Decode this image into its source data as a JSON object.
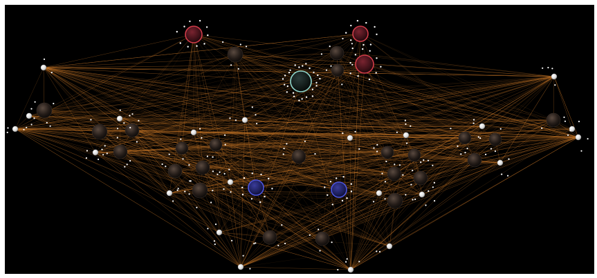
{
  "graph": {
    "background_color": "#000000",
    "frame_color": "#ffffff",
    "edge_color": "#c8782a",
    "highlight_colors": {
      "red": "#d23c4a",
      "teal": "#8fd6cc",
      "blue": "#4c55e0"
    },
    "nodes": [
      {
        "id": "n1",
        "kind": "small"
      },
      {
        "id": "n2",
        "kind": "small"
      },
      {
        "id": "n3",
        "kind": "small"
      },
      {
        "id": "n4",
        "kind": "small"
      },
      {
        "id": "n5",
        "kind": "small"
      },
      {
        "id": "n6",
        "kind": "small"
      },
      {
        "id": "n7",
        "kind": "small"
      },
      {
        "id": "n8",
        "kind": "small"
      },
      {
        "id": "n9",
        "kind": "small"
      },
      {
        "id": "n10",
        "kind": "small"
      },
      {
        "id": "n11",
        "kind": "small"
      },
      {
        "id": "n12",
        "kind": "small"
      },
      {
        "id": "n13",
        "kind": "small"
      },
      {
        "id": "n14",
        "kind": "small"
      },
      {
        "id": "n15",
        "kind": "small"
      },
      {
        "id": "n16",
        "kind": "small"
      },
      {
        "id": "n17",
        "kind": "small"
      },
      {
        "id": "n18",
        "kind": "small"
      },
      {
        "id": "n19",
        "kind": "small"
      },
      {
        "id": "n20",
        "kind": "small"
      },
      {
        "id": "n21",
        "kind": "small"
      },
      {
        "id": "h1",
        "kind": "hub",
        "color": "red"
      },
      {
        "id": "h2",
        "kind": "hub",
        "color": "red"
      },
      {
        "id": "h3",
        "kind": "hub",
        "color": "red"
      },
      {
        "id": "h4",
        "kind": "hub",
        "color": "teal"
      },
      {
        "id": "h5",
        "kind": "hub",
        "color": "blue"
      },
      {
        "id": "h6",
        "kind": "hub",
        "color": "blue"
      }
    ]
  }
}
